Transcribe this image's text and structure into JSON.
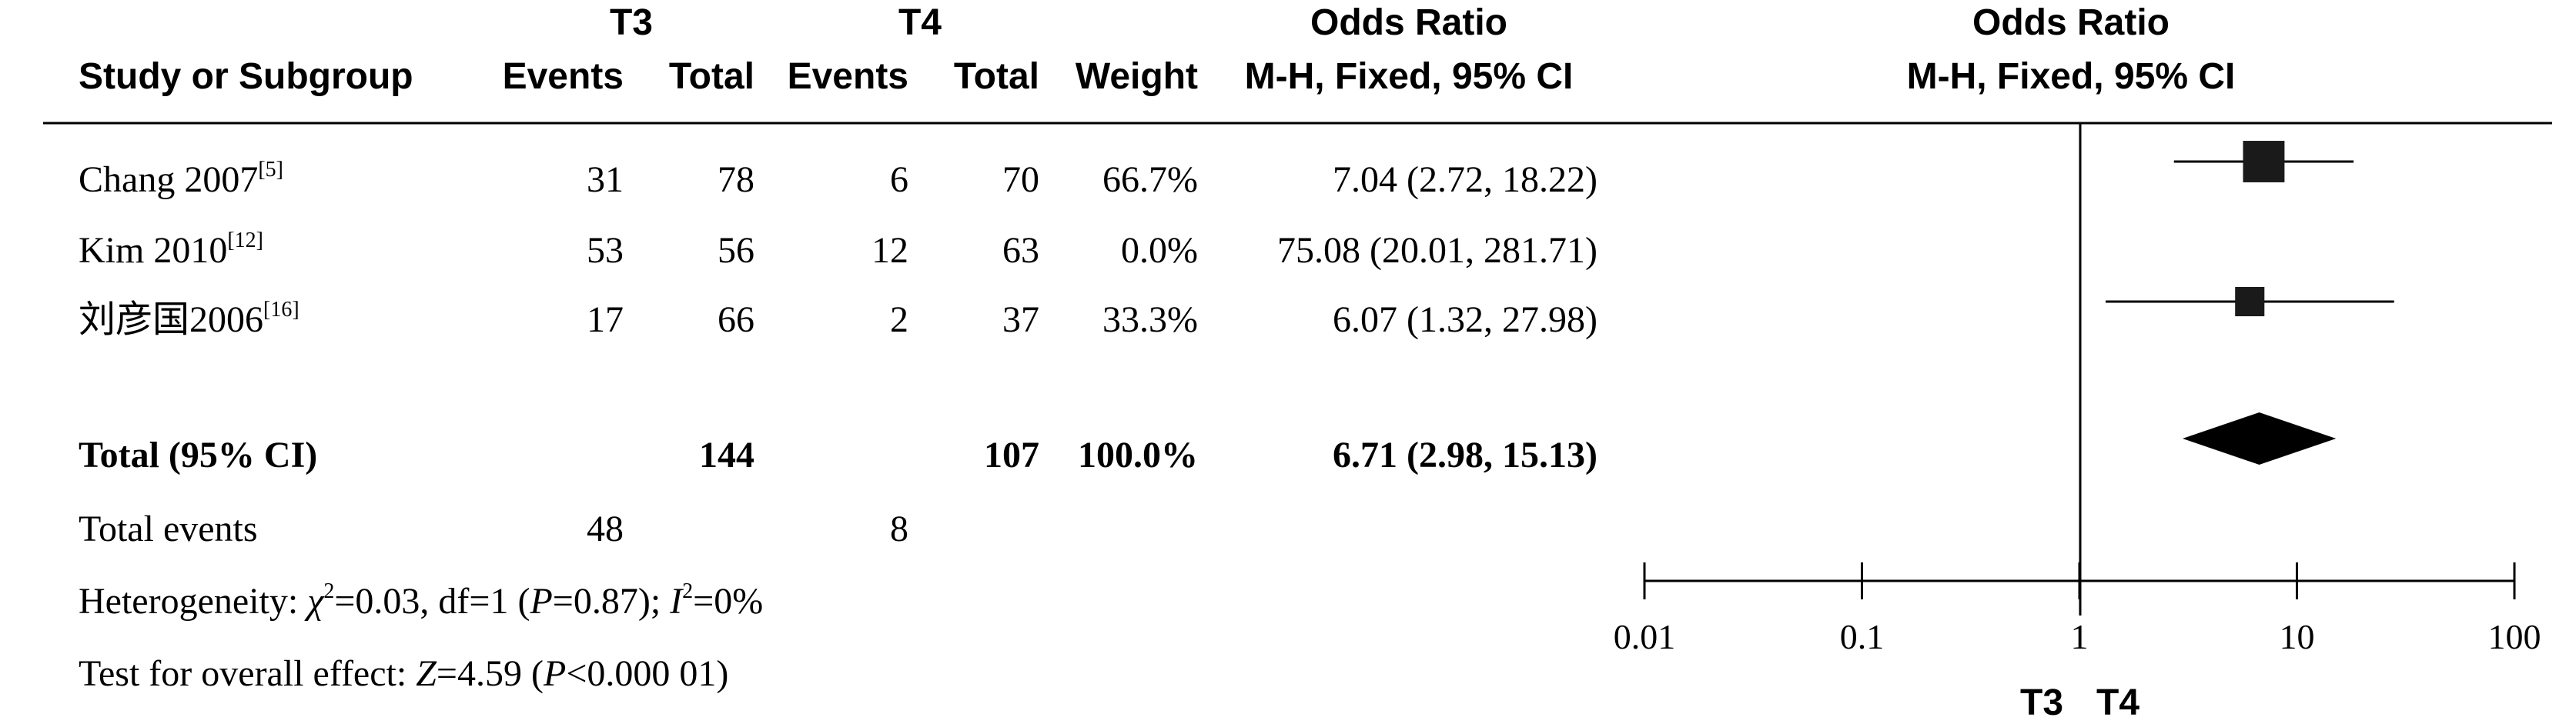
{
  "chart_data": {
    "type": "forest",
    "header": {
      "group1": "T3",
      "group2": "T4",
      "study_col": "Study or Subgroup",
      "events": "Events",
      "total": "Total",
      "weight": "Weight",
      "or_title": "Odds Ratio",
      "or_method": "M-H, Fixed, 95% CI",
      "plot_title": "Odds Ratio",
      "plot_method": "M-H, Fixed, 95% CI"
    },
    "studies": [
      {
        "name": "Chang 2007",
        "ref": "[5]",
        "e1": "31",
        "t1": "78",
        "e2": "6",
        "t2": "70",
        "weight": "66.7%",
        "ci_text": "7.04 (2.72, 18.22)",
        "or": 7.04,
        "lo": 2.72,
        "hi": 18.22,
        "w": 66.7
      },
      {
        "name": "Kim 2010",
        "ref": "[12]",
        "e1": "53",
        "t1": "56",
        "e2": "12",
        "t2": "63",
        "weight": "0.0%",
        "ci_text": "75.08 (20.01, 281.71)",
        "or": 75.08,
        "lo": 20.01,
        "hi": 281.71,
        "w": 0.0
      },
      {
        "name": "刘彦国2006",
        "ref": "[16]",
        "e1": "17",
        "t1": "66",
        "e2": "2",
        "t2": "37",
        "weight": "33.3%",
        "ci_text": "6.07 (1.32, 27.98)",
        "or": 6.07,
        "lo": 1.32,
        "hi": 27.98,
        "w": 33.3
      }
    ],
    "total": {
      "label": "Total (95% CI)",
      "t1": "144",
      "t2": "107",
      "weight": "100.0%",
      "ci_text": "6.71 (2.98, 15.13)",
      "or": 6.71,
      "lo": 2.98,
      "hi": 15.13
    },
    "total_events": {
      "label": "Total events",
      "e1": "48",
      "e2": "8"
    },
    "heterogeneity": {
      "prefix": "Heterogeneity: ",
      "chi_sym": "χ",
      "chi_val": "=0.03, df=1 (",
      "p_sym": "P",
      "p_val": "=0.87); ",
      "i_sym": "I",
      "i_val": "=0%"
    },
    "overall": {
      "prefix": "Test for overall effect: ",
      "z_sym": "Z",
      "z_val": "=4.59 (",
      "p_sym": "P",
      "p_val": "<0.000 01)"
    },
    "axis": {
      "scale": "log",
      "range": [
        0.01,
        100
      ],
      "ticks": [
        0.01,
        0.1,
        1,
        10,
        100
      ],
      "tick_labels": [
        "0.01",
        "0.1",
        "1",
        "10",
        "100"
      ],
      "left_label": "T3",
      "right_label": "T4"
    }
  }
}
